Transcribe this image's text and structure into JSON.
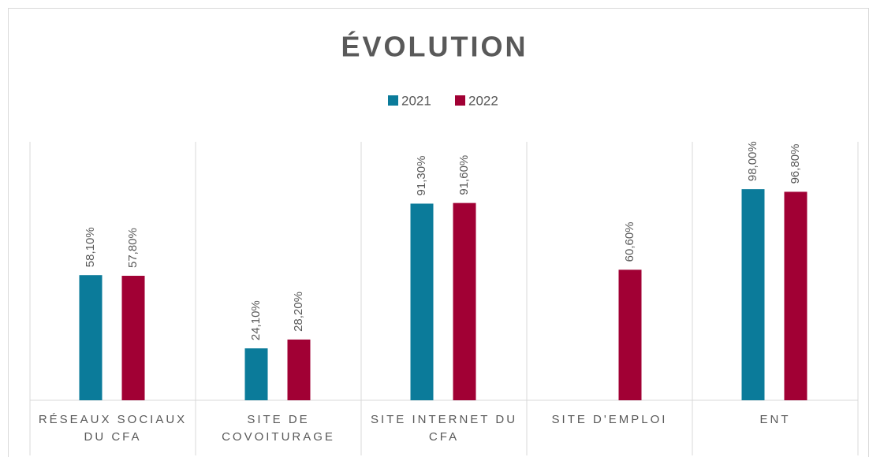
{
  "chart_data": {
    "type": "bar",
    "title": "ÉVOLUTION",
    "categories": [
      "RÉSEAUX SOCIAUX DU CFA",
      "SITE DE COVOITURAGE",
      "SITE INTERNET DU CFA",
      "SITE D'EMPLOI",
      "ENT"
    ],
    "series": [
      {
        "name": "2021",
        "color": "#0b7b9a",
        "values": [
          58.1,
          24.1,
          91.3,
          null,
          98.0
        ],
        "value_labels": [
          "58,10%",
          "24,10%",
          "91,30%",
          null,
          "98,00%"
        ]
      },
      {
        "name": "2022",
        "color": "#a10034",
        "values": [
          57.8,
          28.2,
          91.6,
          60.6,
          96.8
        ],
        "value_labels": [
          "57,80%",
          "28,20%",
          "91,60%",
          "60,60%",
          "96,80%"
        ]
      }
    ],
    "ylim": [
      0,
      120
    ],
    "legend": "top"
  }
}
